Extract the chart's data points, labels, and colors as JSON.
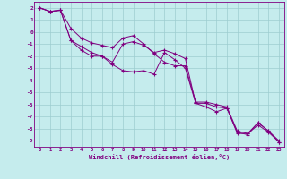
{
  "xlabel": "Windchill (Refroidissement éolien,°C)",
  "background_color": "#c5eced",
  "line_color": "#800080",
  "grid_color": "#9dcdd0",
  "xlim": [
    -0.5,
    23.5
  ],
  "ylim": [
    -9.5,
    2.5
  ],
  "xticks": [
    0,
    1,
    2,
    3,
    4,
    5,
    6,
    7,
    8,
    9,
    10,
    11,
    12,
    13,
    14,
    15,
    16,
    17,
    18,
    19,
    20,
    21,
    22,
    23
  ],
  "yticks": [
    2,
    1,
    0,
    -1,
    -2,
    -3,
    -4,
    -5,
    -6,
    -7,
    -8,
    -9
  ],
  "line1_x": [
    0,
    1,
    2,
    3,
    4,
    5,
    6,
    7,
    8,
    9,
    10,
    11,
    12,
    13,
    14,
    15,
    16,
    17,
    18,
    19,
    20,
    21,
    22,
    23
  ],
  "line1_y": [
    2.0,
    1.7,
    1.8,
    -0.7,
    -1.2,
    -1.7,
    -2.0,
    -2.5,
    -1.0,
    -0.8,
    -1.1,
    -1.7,
    -1.5,
    -1.8,
    -2.2,
    -5.9,
    -5.9,
    -6.2,
    -6.3,
    -8.3,
    -8.5,
    -7.5,
    -8.2,
    -9.1
  ],
  "line2_x": [
    0,
    1,
    2,
    3,
    4,
    5,
    6,
    7,
    8,
    9,
    10,
    11,
    12,
    13,
    14,
    15,
    16,
    17,
    18,
    19,
    20,
    21,
    22,
    23
  ],
  "line2_y": [
    2.0,
    1.7,
    1.8,
    -0.7,
    -1.5,
    -2.0,
    -2.0,
    -2.7,
    -3.2,
    -3.3,
    -3.2,
    -3.5,
    -1.7,
    -2.3,
    -3.0,
    -5.9,
    -6.2,
    -6.6,
    -6.3,
    -8.4,
    -8.4,
    -7.7,
    -8.3,
    -9.1
  ],
  "line3_x": [
    0,
    1,
    2,
    3,
    4,
    5,
    6,
    7,
    8,
    9,
    10,
    11,
    12,
    13,
    14,
    15,
    16,
    17,
    18,
    19,
    20,
    21,
    22,
    23
  ],
  "line3_y": [
    2.0,
    1.7,
    1.8,
    0.3,
    -0.5,
    -0.9,
    -1.1,
    -1.3,
    -0.5,
    -0.3,
    -1.0,
    -1.8,
    -2.5,
    -2.8,
    -2.8,
    -5.8,
    -5.8,
    -6.0,
    -6.2,
    -8.2,
    -8.4,
    -7.5,
    -8.2,
    -9.0
  ]
}
